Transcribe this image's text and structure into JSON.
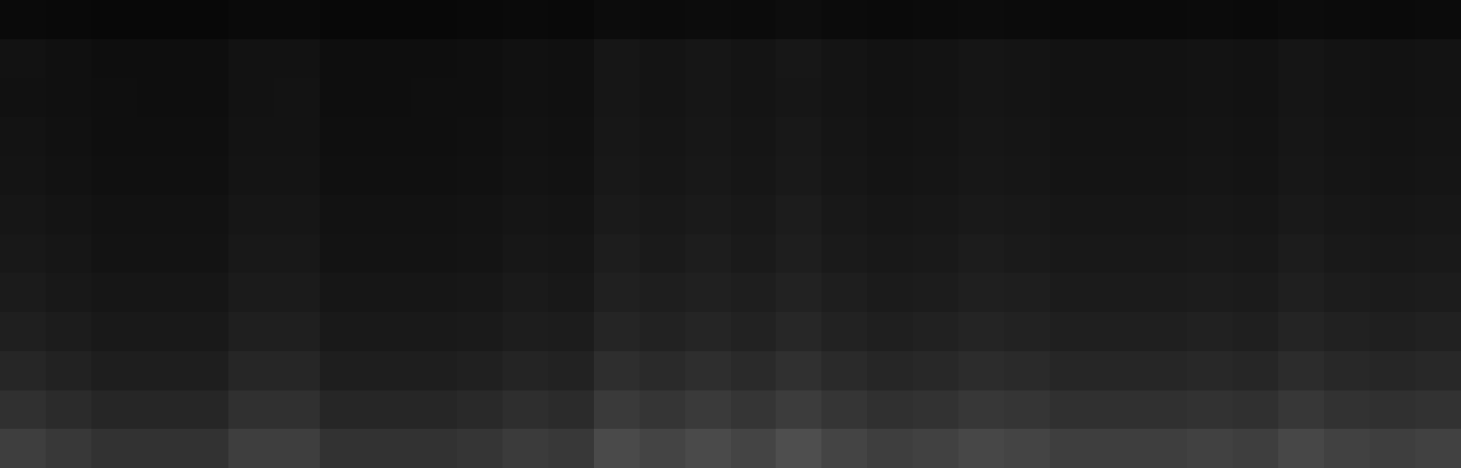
{
  "chart_data": {
    "type": "heatmap",
    "tick_labels": false,
    "zlim": [
      0,
      255
    ],
    "cells": [
      [
        10,
        9,
        8,
        8,
        8,
        10,
        10,
        8,
        8,
        8,
        9,
        10,
        9,
        12,
        11,
        12,
        11,
        13,
        11,
        10,
        11,
        12,
        11,
        10,
        10,
        10,
        11,
        10,
        12,
        11,
        10,
        11
      ],
      [
        18,
        16,
        14,
        14,
        14,
        18,
        18,
        14,
        14,
        14,
        15,
        17,
        16,
        22,
        20,
        22,
        20,
        23,
        20,
        18,
        19,
        21,
        20,
        18,
        18,
        18,
        19,
        18,
        21,
        19,
        18,
        19
      ],
      [
        17,
        16,
        15,
        14,
        14,
        18,
        19,
        14,
        14,
        15,
        15,
        17,
        16,
        22,
        20,
        22,
        20,
        22,
        20,
        18,
        19,
        21,
        20,
        18,
        18,
        18,
        19,
        18,
        21,
        19,
        18,
        19
      ],
      [
        19,
        17,
        15,
        15,
        15,
        19,
        19,
        15,
        15,
        15,
        16,
        18,
        17,
        23,
        21,
        23,
        21,
        24,
        21,
        19,
        20,
        22,
        21,
        19,
        19,
        19,
        20,
        19,
        22,
        20,
        19,
        20
      ],
      [
        20,
        18,
        16,
        16,
        16,
        20,
        20,
        16,
        16,
        16,
        17,
        19,
        18,
        24,
        22,
        24,
        22,
        25,
        22,
        20,
        21,
        23,
        22,
        20,
        20,
        20,
        21,
        20,
        23,
        21,
        20,
        21
      ],
      [
        22,
        20,
        18,
        18,
        18,
        22,
        22,
        18,
        18,
        18,
        19,
        21,
        20,
        26,
        24,
        26,
        24,
        28,
        24,
        22,
        23,
        25,
        24,
        22,
        22,
        22,
        23,
        22,
        25,
        23,
        22,
        23
      ],
      [
        24,
        22,
        19,
        19,
        19,
        24,
        24,
        19,
        19,
        19,
        20,
        23,
        22,
        29,
        26,
        29,
        26,
        30,
        26,
        24,
        25,
        28,
        26,
        24,
        24,
        24,
        25,
        24,
        28,
        25,
        24,
        25
      ],
      [
        27,
        24,
        22,
        22,
        22,
        27,
        27,
        22,
        22,
        22,
        23,
        26,
        24,
        32,
        30,
        32,
        30,
        34,
        30,
        27,
        28,
        31,
        30,
        27,
        27,
        27,
        28,
        27,
        31,
        28,
        27,
        28
      ],
      [
        31,
        28,
        25,
        25,
        25,
        31,
        31,
        25,
        25,
        25,
        26,
        29,
        28,
        37,
        34,
        37,
        34,
        39,
        34,
        31,
        33,
        36,
        34,
        31,
        31,
        31,
        33,
        31,
        36,
        33,
        31,
        33
      ],
      [
        38,
        34,
        30,
        30,
        30,
        38,
        38,
        30,
        30,
        30,
        32,
        36,
        34,
        46,
        42,
        46,
        42,
        48,
        42,
        38,
        40,
        44,
        42,
        38,
        38,
        38,
        40,
        38,
        44,
        40,
        38,
        40
      ],
      [
        48,
        43,
        38,
        38,
        38,
        48,
        48,
        38,
        38,
        38,
        41,
        46,
        43,
        58,
        53,
        58,
        53,
        60,
        53,
        48,
        50,
        55,
        53,
        48,
        48,
        48,
        50,
        48,
        55,
        50,
        48,
        50
      ],
      [
        62,
        56,
        50,
        50,
        50,
        62,
        62,
        50,
        50,
        50,
        53,
        59,
        56,
        74,
        68,
        74,
        68,
        78,
        68,
        62,
        65,
        71,
        68,
        62,
        62,
        62,
        65,
        62,
        71,
        65,
        62,
        65
      ]
    ]
  }
}
